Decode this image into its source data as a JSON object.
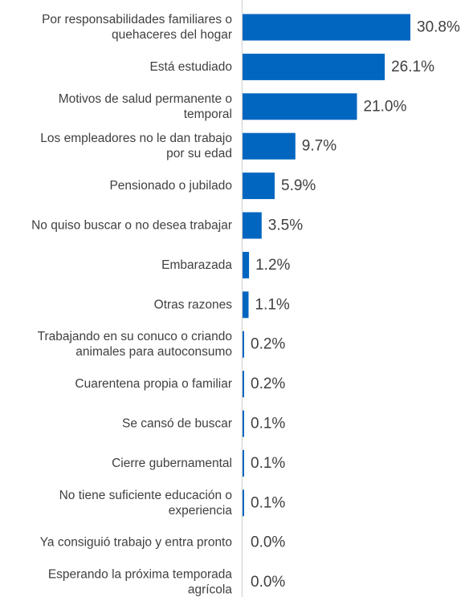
{
  "chart_data": {
    "type": "bar",
    "orientation": "horizontal",
    "categories": [
      [
        "Por responsabilidades familiares o",
        "quehaceres del hogar"
      ],
      [
        "Está estudiado"
      ],
      [
        "Motivos de salud permanente o",
        "temporal"
      ],
      [
        "Los empleadores no le dan trabajo",
        "por su edad"
      ],
      [
        "Pensionado o jubilado"
      ],
      [
        "No quiso buscar o no desea trabajar"
      ],
      [
        "Embarazada"
      ],
      [
        "Otras razones"
      ],
      [
        "Trabajando en su conuco o criando",
        "animales para autoconsumo"
      ],
      [
        "Cuarentena propia o familiar"
      ],
      [
        "Se cansó de buscar"
      ],
      [
        "Cierre gubernamental"
      ],
      [
        "No tiene suficiente educación o",
        "experiencia"
      ],
      [
        "Ya consiguió trabajo y entra pronto"
      ],
      [
        "Esperando la próxima temporada",
        "agrícola"
      ]
    ],
    "values": [
      30.8,
      26.1,
      21.0,
      9.7,
      5.9,
      3.5,
      1.2,
      1.1,
      0.2,
      0.2,
      0.1,
      0.1,
      0.1,
      0.0,
      0.0
    ],
    "value_labels": [
      "30.8%",
      "26.1%",
      "21.0%",
      "9.7%",
      "5.9%",
      "3.5%",
      "1.2%",
      "1.1%",
      "0.2%",
      "0.2%",
      "0.1%",
      "0.1%",
      "0.1%",
      "0.0%",
      "0.0%"
    ],
    "unit": "%",
    "xlim": [
      0,
      30.8
    ],
    "grid": false,
    "legend": "none",
    "bar_color": "#0066C0"
  }
}
